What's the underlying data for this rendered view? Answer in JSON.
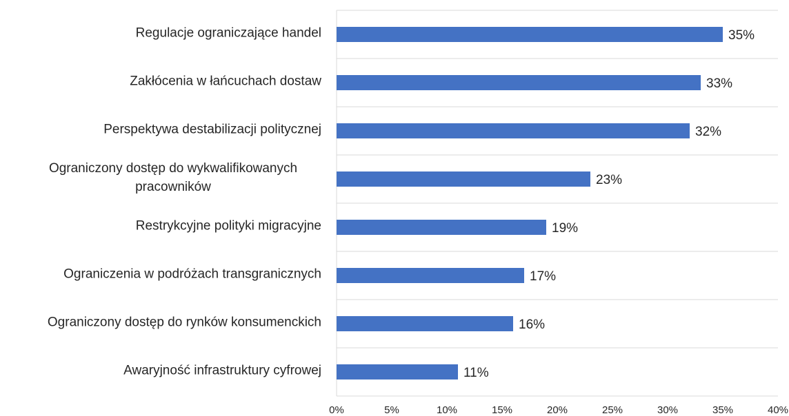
{
  "chart_data": {
    "type": "bar",
    "orientation": "horizontal",
    "categories": [
      "Regulacje ograniczające handel",
      "Zakłócenia w łańcuchach dostaw",
      "Perspektywa destabilizacji politycznej",
      "Ograniczony dostęp do wykwalifikowanych pracowników",
      "Restrykcyjne polityki migracyjne",
      "Ograniczenia w podróżach transgranicznych",
      "Ograniczony dostęp do rynków konsumenckich",
      "Awaryjność infrastruktury cyfrowej"
    ],
    "values": [
      35,
      33,
      32,
      23,
      19,
      17,
      16,
      11
    ],
    "value_labels": [
      "35%",
      "33%",
      "32%",
      "23%",
      "19%",
      "17%",
      "16%",
      "11%"
    ],
    "color": "#4472c4",
    "xlim": [
      0,
      40
    ],
    "xticks": [
      {
        "value": 0,
        "label": "0%"
      },
      {
        "value": 5,
        "label": "5%"
      },
      {
        "value": 10,
        "label": "10%"
      },
      {
        "value": 15,
        "label": "15%"
      },
      {
        "value": 20,
        "label": "20%"
      },
      {
        "value": 25,
        "label": "25%"
      },
      {
        "value": 30,
        "label": "30%"
      },
      {
        "value": 35,
        "label": "35%"
      },
      {
        "value": 40,
        "label": "40%"
      }
    ],
    "grid": false
  }
}
